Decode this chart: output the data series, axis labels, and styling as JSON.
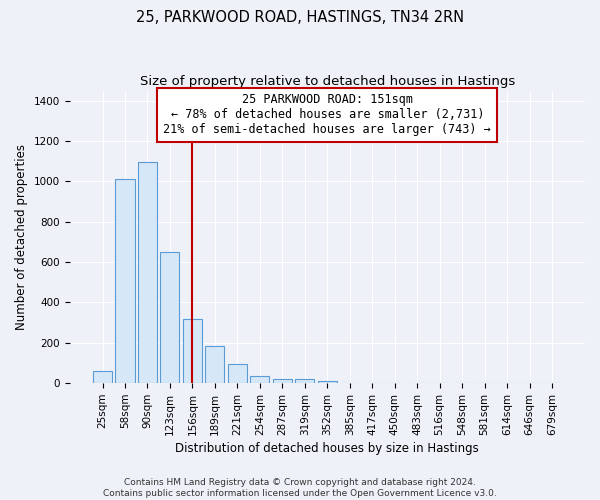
{
  "title": "25, PARKWOOD ROAD, HASTINGS, TN34 2RN",
  "subtitle": "Size of property relative to detached houses in Hastings",
  "xlabel": "Distribution of detached houses by size in Hastings",
  "ylabel": "Number of detached properties",
  "categories": [
    "25sqm",
    "58sqm",
    "90sqm",
    "123sqm",
    "156sqm",
    "189sqm",
    "221sqm",
    "254sqm",
    "287sqm",
    "319sqm",
    "352sqm",
    "385sqm",
    "417sqm",
    "450sqm",
    "483sqm",
    "516sqm",
    "548sqm",
    "581sqm",
    "614sqm",
    "646sqm",
    "679sqm"
  ],
  "values": [
    60,
    1010,
    1095,
    650,
    320,
    185,
    95,
    38,
    22,
    22,
    12,
    0,
    0,
    0,
    0,
    0,
    0,
    0,
    0,
    0,
    0
  ],
  "bar_color": "#d6e8f7",
  "bar_edge_color": "#5b9bd5",
  "vline_x_index": 4,
  "vline_color": "#c00000",
  "annotation_line1": "25 PARKWOOD ROAD: 151sqm",
  "annotation_line2": "← 78% of detached houses are smaller (2,731)",
  "annotation_line3": "21% of semi-detached houses are larger (743) →",
  "annotation_box_color": "#ffffff",
  "annotation_box_edge_color": "#c00000",
  "ylim": [
    0,
    1450
  ],
  "yticks": [
    0,
    200,
    400,
    600,
    800,
    1000,
    1200,
    1400
  ],
  "footer_text": "Contains HM Land Registry data © Crown copyright and database right 2024.\nContains public sector information licensed under the Open Government Licence v3.0.",
  "title_fontsize": 10.5,
  "subtitle_fontsize": 9.5,
  "axis_label_fontsize": 8.5,
  "tick_fontsize": 7.5,
  "annotation_fontsize": 8.5,
  "footer_fontsize": 6.5,
  "background_color": "#eef2f8",
  "plot_background_color": "#eef2f8",
  "grid_color": "#ffffff"
}
